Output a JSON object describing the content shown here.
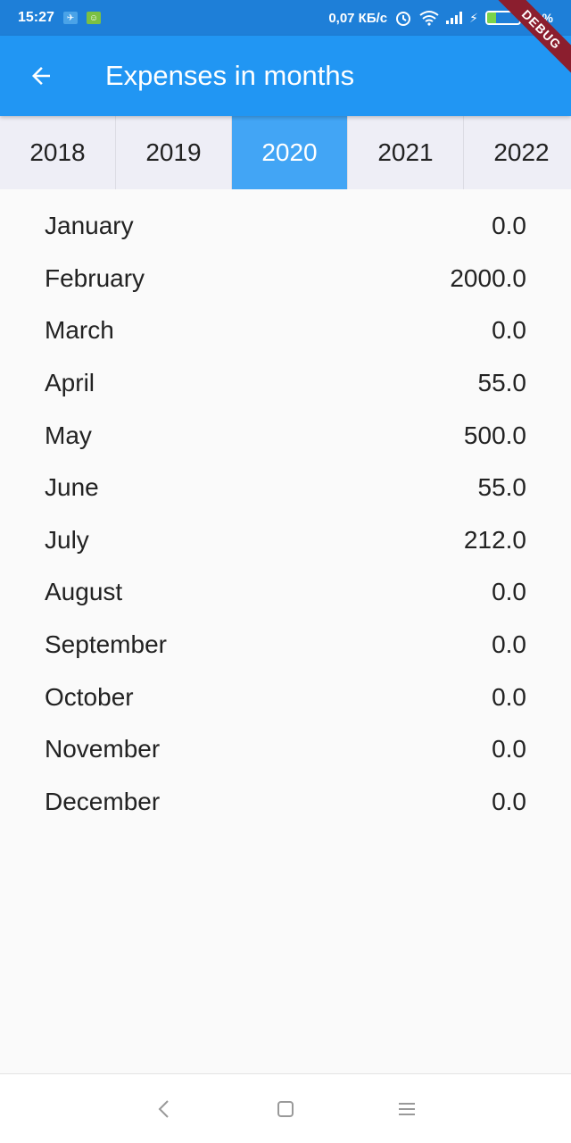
{
  "status_bar": {
    "time": "15:27",
    "network_speed": "0,07 КБ/с",
    "battery_percent": "29%",
    "battery_level": 0.29,
    "icons": [
      "telegram-icon",
      "android-icon",
      "alarm-icon",
      "wifi-icon",
      "signal-icon",
      "charging-icon",
      "battery-icon"
    ]
  },
  "debug_banner": "DEBUG",
  "app_bar": {
    "title": "Expenses in months",
    "back_icon": "arrow-back-icon",
    "color": "#2196f3"
  },
  "year_tabs": {
    "items": [
      {
        "label": "2018",
        "active": false
      },
      {
        "label": "2019",
        "active": false
      },
      {
        "label": "2020",
        "active": true
      },
      {
        "label": "2021",
        "active": false
      },
      {
        "label": "2022",
        "active": false
      }
    ],
    "active_color": "#42a5f5"
  },
  "months": [
    {
      "name": "January",
      "value": "0.0"
    },
    {
      "name": "February",
      "value": "2000.0"
    },
    {
      "name": "March",
      "value": "0.0"
    },
    {
      "name": "April",
      "value": "55.0"
    },
    {
      "name": "May",
      "value": "500.0"
    },
    {
      "name": "June",
      "value": "55.0"
    },
    {
      "name": "July",
      "value": "212.0"
    },
    {
      "name": "August",
      "value": "0.0"
    },
    {
      "name": "September",
      "value": "0.0"
    },
    {
      "name": "October",
      "value": "0.0"
    },
    {
      "name": "November",
      "value": "0.0"
    },
    {
      "name": "December",
      "value": "0.0"
    }
  ],
  "nav_bar": {
    "icons": [
      "nav-back-icon",
      "nav-home-icon",
      "nav-menu-icon"
    ]
  }
}
